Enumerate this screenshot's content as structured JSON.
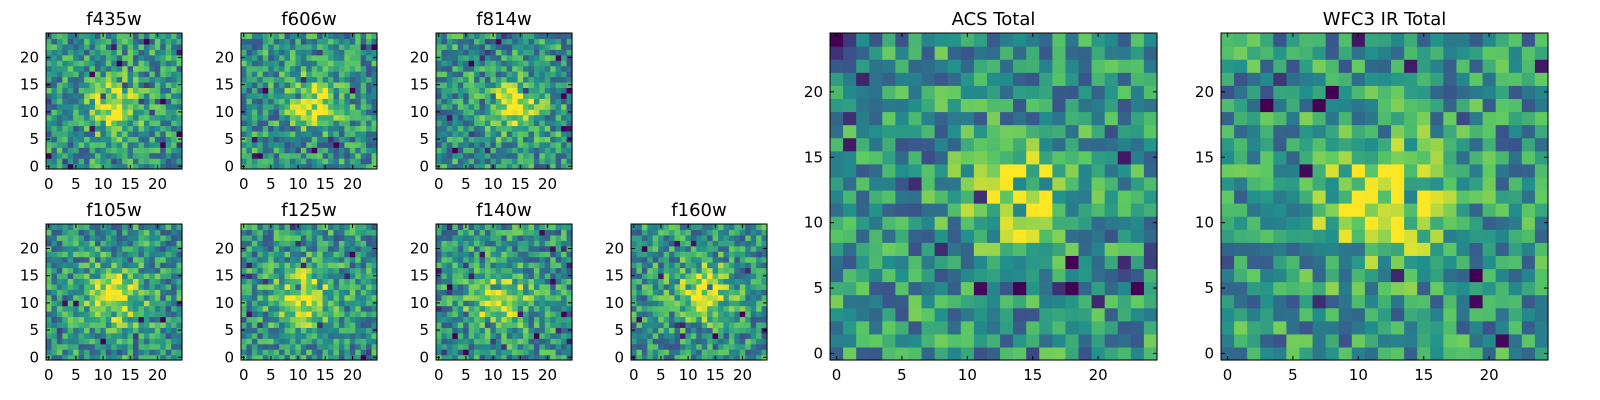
{
  "chart_data": [
    {
      "type": "heatmap",
      "title": "f435w",
      "xticks": [
        "0",
        "5",
        "10",
        "15",
        "20"
      ],
      "yticks": [
        "0",
        "5",
        "10",
        "15",
        "20"
      ],
      "xlim": [
        0,
        24
      ],
      "ylim": [
        0,
        24
      ],
      "grid": false
    },
    {
      "type": "heatmap",
      "title": "f606w",
      "xticks": [
        "0",
        "5",
        "10",
        "15",
        "20"
      ],
      "yticks": [
        "0",
        "5",
        "10",
        "15",
        "20"
      ],
      "xlim": [
        0,
        24
      ],
      "ylim": [
        0,
        24
      ],
      "grid": false
    },
    {
      "type": "heatmap",
      "title": "f814w",
      "xticks": [
        "0",
        "5",
        "10",
        "15",
        "20"
      ],
      "yticks": [
        "0",
        "5",
        "10",
        "15",
        "20"
      ],
      "xlim": [
        0,
        24
      ],
      "ylim": [
        0,
        24
      ],
      "grid": false
    },
    {
      "type": "heatmap",
      "title": "f105w",
      "xticks": [
        "0",
        "5",
        "10",
        "15",
        "20"
      ],
      "yticks": [
        "0",
        "5",
        "10",
        "15",
        "20"
      ],
      "xlim": [
        0,
        24
      ],
      "ylim": [
        0,
        24
      ],
      "grid": false
    },
    {
      "type": "heatmap",
      "title": "f125w",
      "xticks": [
        "0",
        "5",
        "10",
        "15",
        "20"
      ],
      "yticks": [
        "0",
        "5",
        "10",
        "15",
        "20"
      ],
      "xlim": [
        0,
        24
      ],
      "ylim": [
        0,
        24
      ],
      "grid": false
    },
    {
      "type": "heatmap",
      "title": "f140w",
      "xticks": [
        "0",
        "5",
        "10",
        "15",
        "20"
      ],
      "yticks": [
        "0",
        "5",
        "10",
        "15",
        "20"
      ],
      "xlim": [
        0,
        24
      ],
      "ylim": [
        0,
        24
      ],
      "grid": false
    },
    {
      "type": "heatmap",
      "title": "f160w",
      "xticks": [
        "0",
        "5",
        "10",
        "15",
        "20"
      ],
      "yticks": [
        "0",
        "5",
        "10",
        "15",
        "20"
      ],
      "xlim": [
        0,
        24
      ],
      "ylim": [
        0,
        24
      ],
      "grid": false
    },
    {
      "type": "heatmap",
      "title": "ACS Total",
      "xticks": [
        "0",
        "5",
        "10",
        "15",
        "20"
      ],
      "yticks": [
        "0",
        "5",
        "10",
        "15",
        "20"
      ],
      "xlim": [
        0,
        24
      ],
      "ylim": [
        0,
        24
      ],
      "grid": false
    },
    {
      "type": "heatmap",
      "title": "WFC3 IR Total",
      "xticks": [
        "0",
        "5",
        "10",
        "15",
        "20"
      ],
      "yticks": [
        "0",
        "5",
        "10",
        "15",
        "20"
      ],
      "xlim": [
        0,
        24
      ],
      "ylim": [
        0,
        24
      ],
      "grid": false
    }
  ],
  "colormap": {
    "name": "viridis",
    "stops": [
      "#440154",
      "#3b528b",
      "#21908c",
      "#5dc963",
      "#fde725"
    ]
  }
}
